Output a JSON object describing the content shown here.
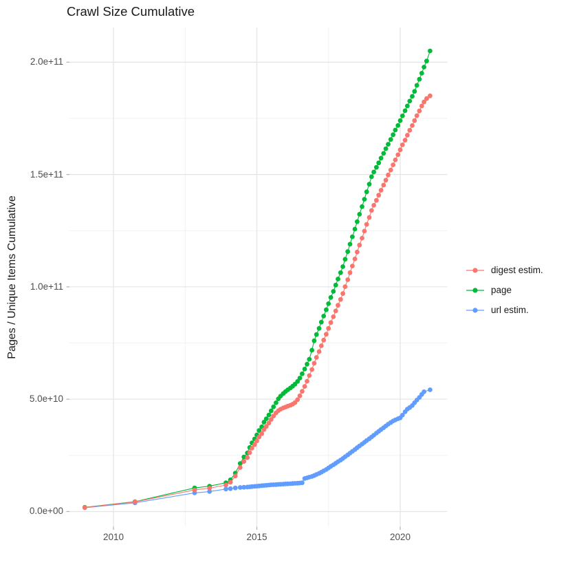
{
  "page": {
    "title": "Crawl Size Cumulative"
  },
  "chart_data": {
    "type": "line",
    "title": "Crawl Size Cumulative",
    "xlabel": "",
    "ylabel": "Pages / Unique Items Cumulative",
    "x_unit": "year",
    "value_unit": "items, series values stored in billions (1e9)",
    "xlim": [
      2008.465,
      2021.643
    ],
    "ylim_e9": [
      -6.74,
      215.42
    ],
    "grid": "major+minor",
    "legend_position": "right",
    "x_major_ticks": [
      {
        "value": 2010,
        "label": "2010"
      },
      {
        "value": 2015,
        "label": "2015"
      },
      {
        "value": 2020,
        "label": "2020"
      }
    ],
    "x_minor_ticks": [
      2012.5,
      2017.5
    ],
    "y_major_ticks": [
      {
        "value_e9": 0,
        "label": "0.0e+00"
      },
      {
        "value_e9": 50,
        "label": "5.0e+10"
      },
      {
        "value_e9": 100,
        "label": "1.0e+11"
      },
      {
        "value_e9": 150,
        "label": "1.5e+11"
      },
      {
        "value_e9": 200,
        "label": "2.0e+11"
      }
    ],
    "y_minor_ticks_e9": [
      25,
      75,
      125,
      175
    ],
    "colors": {
      "digest_estim": "#F8766D",
      "page": "#00BA38",
      "url_estim": "#619CFF",
      "grid_major": "#e4e4e4",
      "grid_minor": "#f0f0f0",
      "axis_text": "#4d4d4d"
    },
    "legend": [
      {
        "label": "digest estim.",
        "color": "#F8766D"
      },
      {
        "label": "page",
        "color": "#00BA38"
      },
      {
        "label": "url estim.",
        "color": "#619CFF"
      }
    ],
    "series": [
      {
        "name": "digest estim.",
        "color": "#F8766D",
        "points_year_value_e9": [
          [
            2009.0,
            1.8
          ],
          [
            2010.75,
            4.3
          ],
          [
            2012.83,
            9.6
          ],
          [
            2013.35,
            10.4
          ],
          [
            2013.92,
            11.8
          ],
          [
            2014.08,
            13.0
          ],
          [
            2014.25,
            15.8
          ],
          [
            2014.42,
            19.6
          ],
          [
            2014.55,
            22.3
          ],
          [
            2014.67,
            24.0
          ],
          [
            2014.75,
            26.2
          ],
          [
            2014.83,
            28.2
          ],
          [
            2014.92,
            29.8
          ],
          [
            2015.0,
            31.4
          ],
          [
            2015.08,
            33.2
          ],
          [
            2015.17,
            34.7
          ],
          [
            2015.25,
            36.5
          ],
          [
            2015.33,
            37.9
          ],
          [
            2015.42,
            39.4
          ],
          [
            2015.5,
            41.0
          ],
          [
            2015.58,
            42.5
          ],
          [
            2015.67,
            43.9
          ],
          [
            2015.75,
            44.9
          ],
          [
            2015.83,
            45.6
          ],
          [
            2015.92,
            46.1
          ],
          [
            2016.0,
            46.5
          ],
          [
            2016.08,
            46.9
          ],
          [
            2016.17,
            47.3
          ],
          [
            2016.25,
            47.8
          ],
          [
            2016.33,
            48.5
          ],
          [
            2016.42,
            49.8
          ],
          [
            2016.5,
            51.5
          ],
          [
            2016.58,
            53.5
          ],
          [
            2016.67,
            55.7
          ],
          [
            2016.75,
            58.0
          ],
          [
            2016.83,
            60.5
          ],
          [
            2016.92,
            63.2
          ],
          [
            2017.0,
            66.0
          ],
          [
            2017.08,
            68.6
          ],
          [
            2017.17,
            71.2
          ],
          [
            2017.25,
            73.8
          ],
          [
            2017.33,
            76.3
          ],
          [
            2017.42,
            78.9
          ],
          [
            2017.5,
            81.5
          ],
          [
            2017.58,
            84.1
          ],
          [
            2017.67,
            86.7
          ],
          [
            2017.75,
            89.3
          ],
          [
            2017.83,
            91.8
          ],
          [
            2017.92,
            94.4
          ],
          [
            2018.0,
            97.0
          ],
          [
            2018.08,
            100.1
          ],
          [
            2018.17,
            103.2
          ],
          [
            2018.25,
            106.3
          ],
          [
            2018.33,
            109.3
          ],
          [
            2018.42,
            112.4
          ],
          [
            2018.5,
            115.5
          ],
          [
            2018.58,
            118.6
          ],
          [
            2018.67,
            121.7
          ],
          [
            2018.75,
            124.8
          ],
          [
            2018.83,
            127.8
          ],
          [
            2018.92,
            130.9
          ],
          [
            2019.0,
            134.0
          ],
          [
            2019.08,
            136.3
          ],
          [
            2019.17,
            138.5
          ],
          [
            2019.25,
            140.8
          ],
          [
            2019.33,
            143.0
          ],
          [
            2019.42,
            145.3
          ],
          [
            2019.5,
            147.5
          ],
          [
            2019.58,
            149.8
          ],
          [
            2019.67,
            152.0
          ],
          [
            2019.75,
            154.3
          ],
          [
            2019.83,
            156.5
          ],
          [
            2019.92,
            158.8
          ],
          [
            2020.0,
            161.0
          ],
          [
            2020.08,
            163.2
          ],
          [
            2020.17,
            165.3
          ],
          [
            2020.25,
            167.5
          ],
          [
            2020.33,
            169.7
          ],
          [
            2020.42,
            171.8
          ],
          [
            2020.5,
            174.0
          ],
          [
            2020.58,
            176.2
          ],
          [
            2020.67,
            178.3
          ],
          [
            2020.75,
            180.5
          ],
          [
            2020.83,
            182.3
          ],
          [
            2020.92,
            183.8
          ],
          [
            2021.04,
            185.0
          ]
        ]
      },
      {
        "name": "page",
        "color": "#00BA38",
        "points_year_value_e9": [
          [
            2009.0,
            1.9
          ],
          [
            2010.75,
            4.4
          ],
          [
            2012.83,
            10.5
          ],
          [
            2013.35,
            11.3
          ],
          [
            2013.92,
            12.8
          ],
          [
            2014.08,
            14.1
          ],
          [
            2014.25,
            17.1
          ],
          [
            2014.42,
            21.4
          ],
          [
            2014.55,
            24.3
          ],
          [
            2014.67,
            26.1
          ],
          [
            2014.75,
            28.5
          ],
          [
            2014.83,
            30.6
          ],
          [
            2014.92,
            32.3
          ],
          [
            2015.0,
            34.1
          ],
          [
            2015.08,
            36.1
          ],
          [
            2015.17,
            37.7
          ],
          [
            2015.25,
            39.8
          ],
          [
            2015.33,
            41.3
          ],
          [
            2015.42,
            43.0
          ],
          [
            2015.5,
            44.8
          ],
          [
            2015.58,
            46.6
          ],
          [
            2015.67,
            48.4
          ],
          [
            2015.75,
            50.2
          ],
          [
            2015.83,
            51.4
          ],
          [
            2015.92,
            52.5
          ],
          [
            2016.0,
            53.4
          ],
          [
            2016.08,
            54.2
          ],
          [
            2016.17,
            55.0
          ],
          [
            2016.25,
            55.8
          ],
          [
            2016.33,
            56.7
          ],
          [
            2016.42,
            57.9
          ],
          [
            2016.5,
            59.4
          ],
          [
            2016.58,
            61.3
          ],
          [
            2016.67,
            63.4
          ],
          [
            2016.75,
            65.6
          ],
          [
            2016.83,
            67.8
          ],
          [
            2016.92,
            71.8
          ],
          [
            2017.0,
            76.0
          ],
          [
            2017.08,
            78.8
          ],
          [
            2017.17,
            81.5
          ],
          [
            2017.25,
            84.3
          ],
          [
            2017.33,
            87.0
          ],
          [
            2017.42,
            89.8
          ],
          [
            2017.5,
            92.5
          ],
          [
            2017.58,
            95.3
          ],
          [
            2017.67,
            98.0
          ],
          [
            2017.75,
            100.8
          ],
          [
            2017.83,
            103.5
          ],
          [
            2017.92,
            106.3
          ],
          [
            2018.0,
            109.0
          ],
          [
            2018.08,
            112.3
          ],
          [
            2018.17,
            115.7
          ],
          [
            2018.25,
            119.0
          ],
          [
            2018.33,
            122.3
          ],
          [
            2018.42,
            125.7
          ],
          [
            2018.5,
            129.0
          ],
          [
            2018.58,
            132.3
          ],
          [
            2018.67,
            135.7
          ],
          [
            2018.75,
            139.0
          ],
          [
            2018.83,
            142.3
          ],
          [
            2018.92,
            145.7
          ],
          [
            2019.0,
            149.0
          ],
          [
            2019.08,
            151.1
          ],
          [
            2019.17,
            153.2
          ],
          [
            2019.25,
            155.2
          ],
          [
            2019.33,
            157.3
          ],
          [
            2019.42,
            159.4
          ],
          [
            2019.5,
            161.5
          ],
          [
            2019.58,
            163.5
          ],
          [
            2019.67,
            165.6
          ],
          [
            2019.75,
            167.7
          ],
          [
            2019.83,
            169.8
          ],
          [
            2019.92,
            171.8
          ],
          [
            2020.0,
            174.0
          ],
          [
            2020.08,
            176.1
          ],
          [
            2020.17,
            178.4
          ],
          [
            2020.25,
            180.5
          ],
          [
            2020.33,
            182.7
          ],
          [
            2020.42,
            184.8
          ],
          [
            2020.5,
            187.0
          ],
          [
            2020.58,
            189.7
          ],
          [
            2020.67,
            192.4
          ],
          [
            2020.75,
            195.1
          ],
          [
            2020.83,
            197.8
          ],
          [
            2020.92,
            200.5
          ],
          [
            2021.04,
            205.0
          ]
        ]
      },
      {
        "name": "url estim.",
        "color": "#619CFF",
        "points_year_value_e9": [
          [
            2009.0,
            1.7
          ],
          [
            2010.75,
            3.9
          ],
          [
            2012.83,
            8.3
          ],
          [
            2013.35,
            8.9
          ],
          [
            2013.92,
            10.0
          ],
          [
            2014.08,
            10.2
          ],
          [
            2014.25,
            10.5
          ],
          [
            2014.42,
            10.7
          ],
          [
            2014.55,
            10.8
          ],
          [
            2014.67,
            10.9
          ],
          [
            2014.75,
            11.0
          ],
          [
            2014.83,
            11.1
          ],
          [
            2014.92,
            11.2
          ],
          [
            2015.0,
            11.3
          ],
          [
            2015.08,
            11.4
          ],
          [
            2015.17,
            11.5
          ],
          [
            2015.25,
            11.6
          ],
          [
            2015.33,
            11.7
          ],
          [
            2015.42,
            11.8
          ],
          [
            2015.5,
            11.9
          ],
          [
            2015.58,
            11.95
          ],
          [
            2015.67,
            12.0
          ],
          [
            2015.75,
            12.1
          ],
          [
            2015.83,
            12.15
          ],
          [
            2015.92,
            12.2
          ],
          [
            2016.0,
            12.3
          ],
          [
            2016.08,
            12.35
          ],
          [
            2016.17,
            12.4
          ],
          [
            2016.25,
            12.5
          ],
          [
            2016.33,
            12.55
          ],
          [
            2016.42,
            12.6
          ],
          [
            2016.5,
            12.7
          ],
          [
            2016.58,
            12.8
          ],
          [
            2016.67,
            14.7
          ],
          [
            2016.75,
            15.0
          ],
          [
            2016.83,
            15.3
          ],
          [
            2016.92,
            15.6
          ],
          [
            2017.0,
            16.0
          ],
          [
            2017.08,
            16.5
          ],
          [
            2017.17,
            17.0
          ],
          [
            2017.25,
            17.5
          ],
          [
            2017.33,
            18.1
          ],
          [
            2017.42,
            18.7
          ],
          [
            2017.5,
            19.4
          ],
          [
            2017.58,
            20.1
          ],
          [
            2017.67,
            20.8
          ],
          [
            2017.75,
            21.5
          ],
          [
            2017.83,
            22.2
          ],
          [
            2017.92,
            22.9
          ],
          [
            2018.0,
            23.6
          ],
          [
            2018.08,
            24.4
          ],
          [
            2018.17,
            25.2
          ],
          [
            2018.25,
            26.0
          ],
          [
            2018.33,
            26.8
          ],
          [
            2018.42,
            27.6
          ],
          [
            2018.5,
            28.4
          ],
          [
            2018.58,
            29.2
          ],
          [
            2018.67,
            30.0
          ],
          [
            2018.75,
            30.8
          ],
          [
            2018.83,
            31.6
          ],
          [
            2018.92,
            32.4
          ],
          [
            2019.0,
            33.2
          ],
          [
            2019.08,
            34.0
          ],
          [
            2019.17,
            34.9
          ],
          [
            2019.25,
            35.7
          ],
          [
            2019.33,
            36.5
          ],
          [
            2019.42,
            37.3
          ],
          [
            2019.5,
            38.1
          ],
          [
            2019.58,
            38.9
          ],
          [
            2019.67,
            39.6
          ],
          [
            2019.75,
            40.3
          ],
          [
            2019.83,
            40.8
          ],
          [
            2019.92,
            41.3
          ],
          [
            2020.0,
            41.7
          ],
          [
            2020.08,
            42.9
          ],
          [
            2020.17,
            44.4
          ],
          [
            2020.25,
            45.6
          ],
          [
            2020.33,
            46.3
          ],
          [
            2020.42,
            47.2
          ],
          [
            2020.5,
            48.4
          ],
          [
            2020.58,
            49.6
          ],
          [
            2020.67,
            50.8
          ],
          [
            2020.75,
            52.1
          ],
          [
            2020.83,
            53.3
          ],
          [
            2021.04,
            54.2
          ]
        ]
      }
    ]
  }
}
